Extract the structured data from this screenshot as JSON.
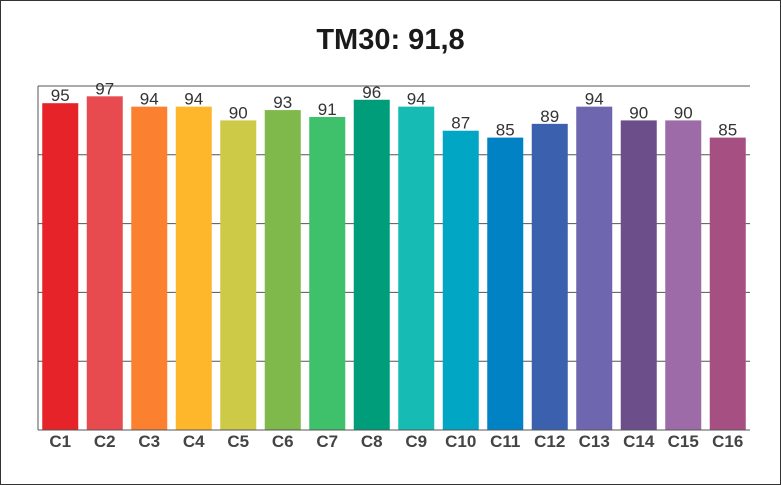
{
  "chart_data": {
    "type": "bar",
    "title": "TM30: 91,8",
    "categories": [
      "C1",
      "C2",
      "C3",
      "C4",
      "C5",
      "C6",
      "C7",
      "C8",
      "C9",
      "C10",
      "C11",
      "C12",
      "C13",
      "C14",
      "C15",
      "C16"
    ],
    "values": [
      95,
      97,
      94,
      94,
      90,
      93,
      91,
      96,
      94,
      87,
      85,
      89,
      94,
      90,
      90,
      85
    ],
    "colors": [
      "#e52329",
      "#e74b50",
      "#fb8130",
      "#feb62a",
      "#cdca48",
      "#7fb84b",
      "#3fc06a",
      "#009d7a",
      "#16bcb4",
      "#00a6c4",
      "#0082c4",
      "#3b61ae",
      "#6e66ae",
      "#6c4e8a",
      "#9c6ba8",
      "#a54f83"
    ],
    "ylim": [
      0,
      100
    ],
    "grid": true,
    "show_value_labels": true,
    "xlabel": "",
    "ylabel": ""
  }
}
